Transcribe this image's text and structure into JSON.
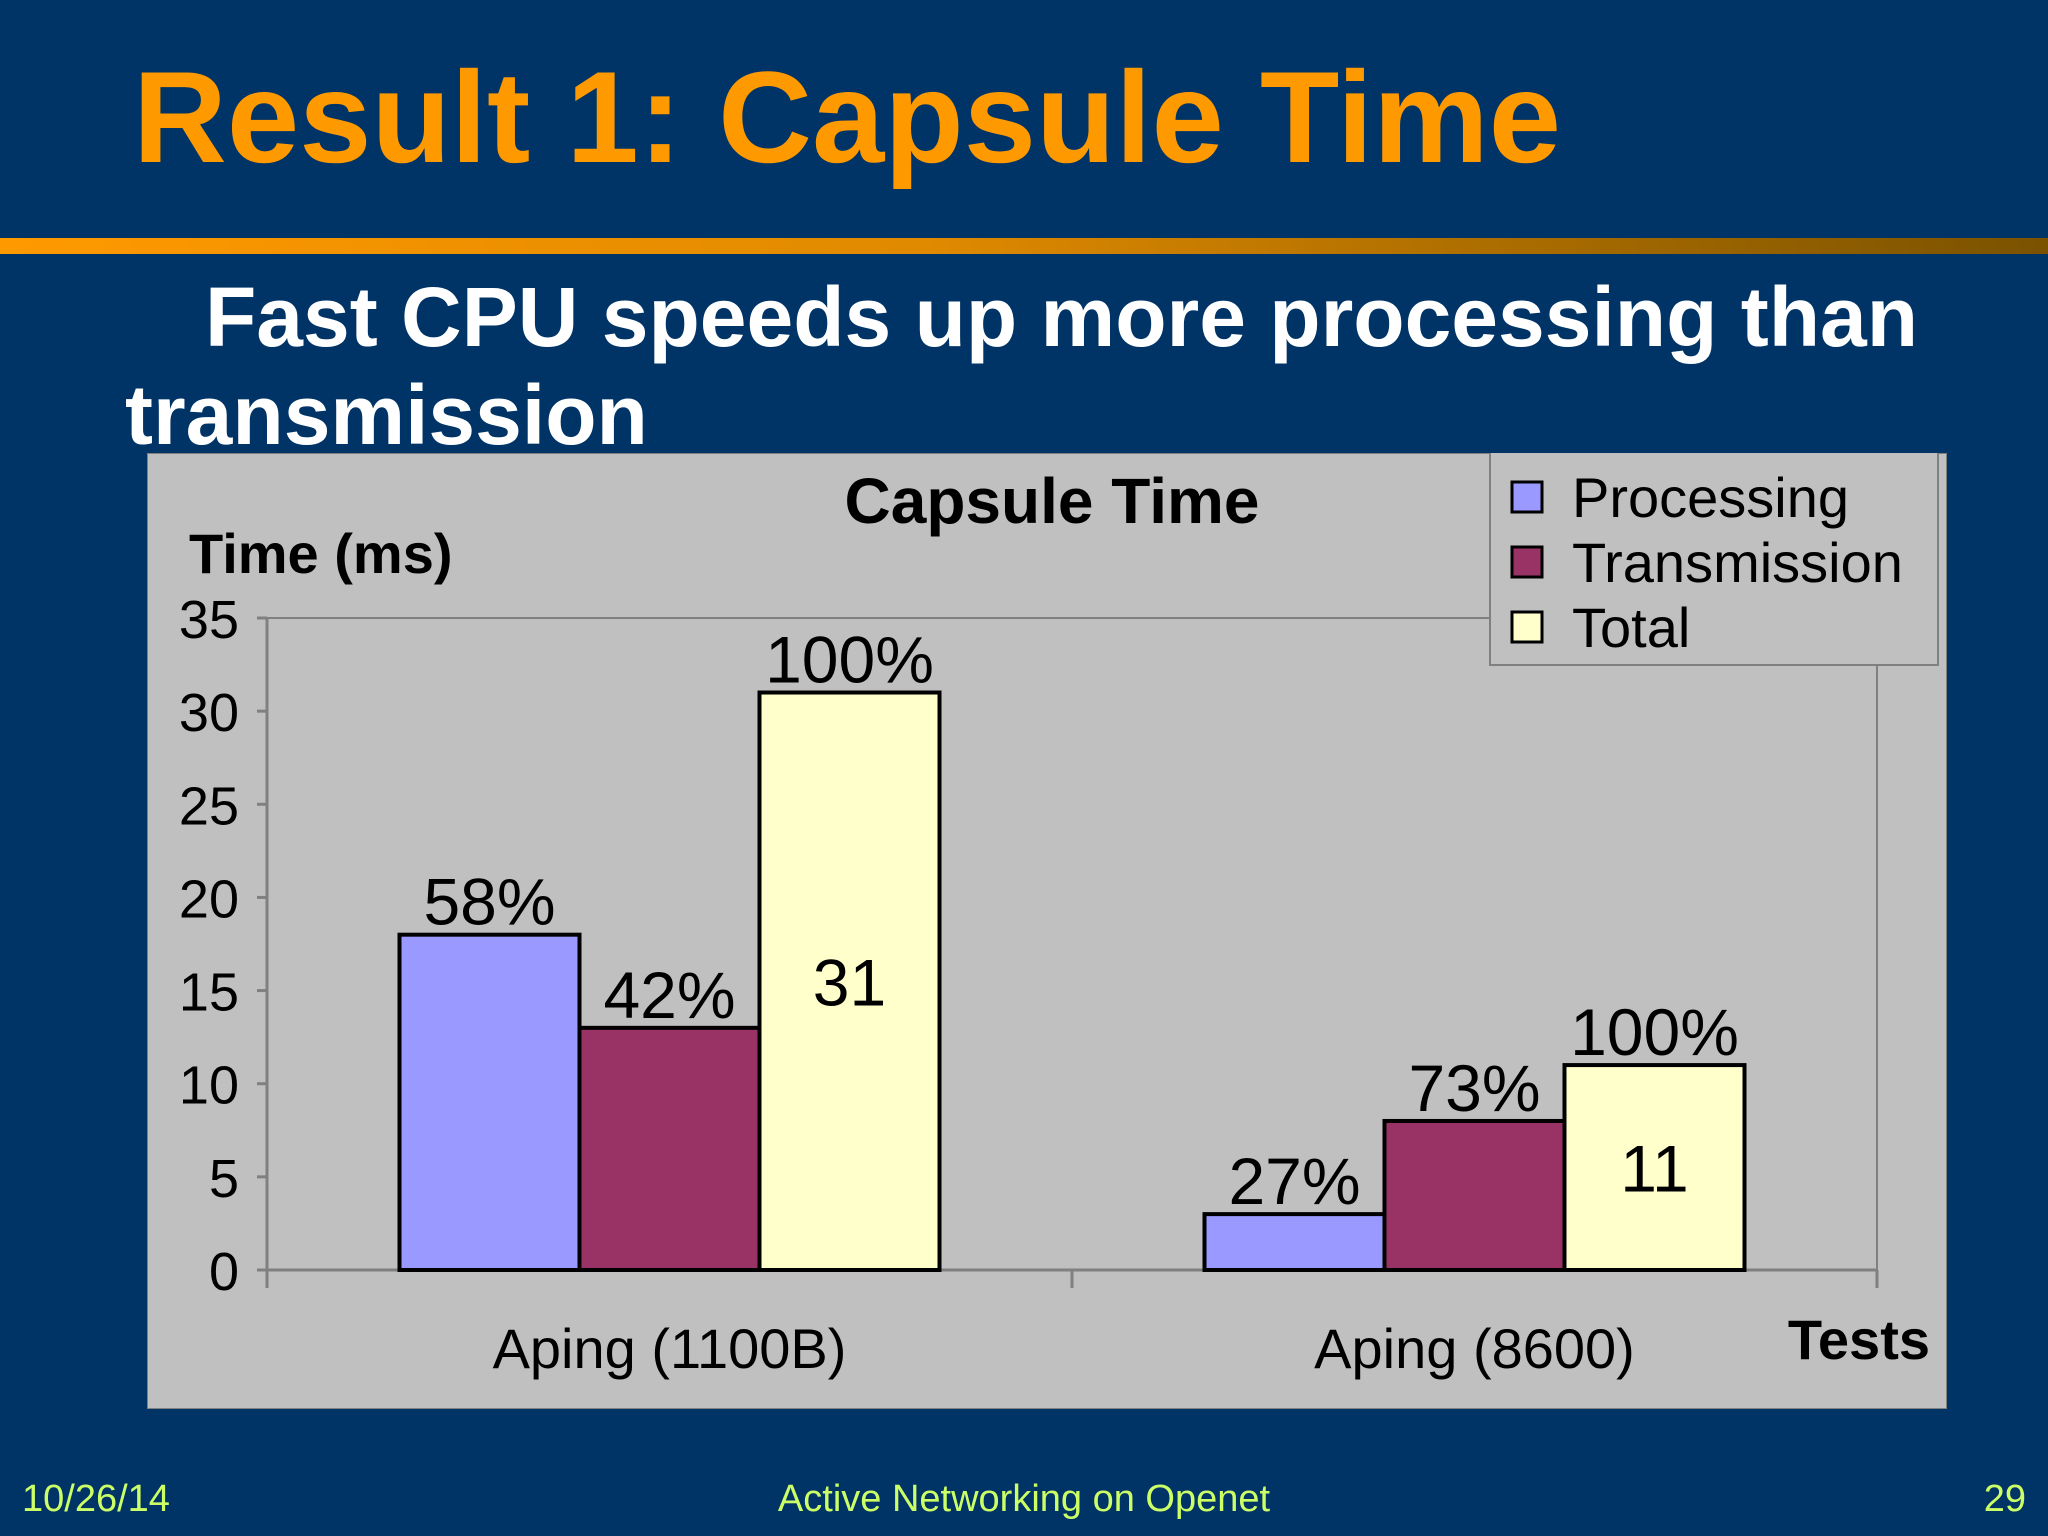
{
  "slide": {
    "title": "Result 1: Capsule Time",
    "subtitle": "Fast CPU speeds up more processing than transmission",
    "footer": {
      "date": "10/26/14",
      "center": "Active Networking on Openet",
      "page": "29"
    }
  },
  "chart_data": {
    "type": "bar",
    "title": "Capsule Time",
    "ylabel": "Time (ms)",
    "xlabel": "Tests",
    "ylim": [
      0,
      35
    ],
    "yticks": [
      0,
      5,
      10,
      15,
      20,
      25,
      30,
      35
    ],
    "categories": [
      "Aping (1100B)",
      "Aping (8600)"
    ],
    "series": [
      {
        "name": "Processing",
        "color": "#9999FF",
        "values": [
          18,
          3
        ],
        "labels": [
          "58%",
          "27%"
        ]
      },
      {
        "name": "Transmission",
        "color": "#993366",
        "values": [
          13,
          8
        ],
        "labels": [
          "42%",
          "73%"
        ]
      },
      {
        "name": "Total",
        "color": "#FFFFCC",
        "values": [
          31,
          11
        ],
        "labels": [
          "100%",
          "100%"
        ],
        "inner_labels": [
          "31",
          "11"
        ]
      }
    ],
    "legend_position": "top-right",
    "grid": false,
    "background": "#C0C0C0"
  }
}
